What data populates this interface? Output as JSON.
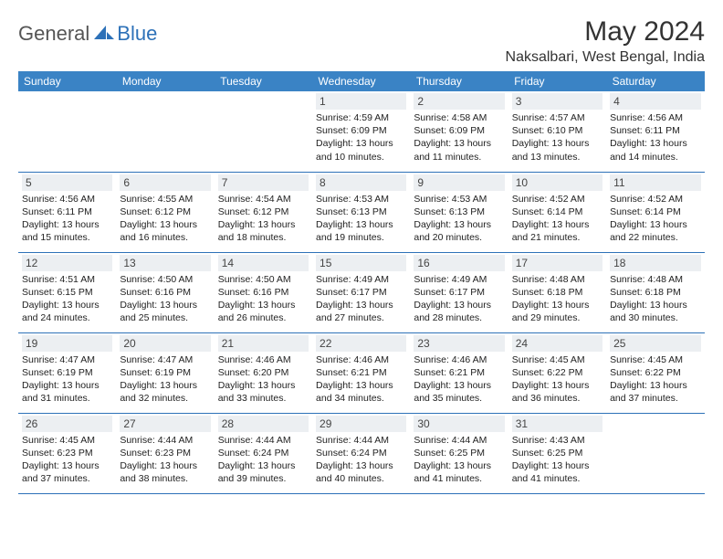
{
  "brand": {
    "part1": "General",
    "part2": "Blue"
  },
  "title": "May 2024",
  "location": "Naksalbari, West Bengal, India",
  "colors": {
    "header_bg": "#3a83c5",
    "header_text": "#ffffff",
    "daynum_bg": "#eceff2",
    "row_border": "#2d71b8",
    "brand_gray": "#555555",
    "brand_blue": "#2d71b8",
    "page_bg": "#ffffff"
  },
  "weekdays": [
    "Sunday",
    "Monday",
    "Tuesday",
    "Wednesday",
    "Thursday",
    "Friday",
    "Saturday"
  ],
  "weeks": [
    [
      null,
      null,
      null,
      {
        "d": "1",
        "sr": "4:59 AM",
        "ss": "6:09 PM",
        "dl": "13 hours and 10 minutes."
      },
      {
        "d": "2",
        "sr": "4:58 AM",
        "ss": "6:09 PM",
        "dl": "13 hours and 11 minutes."
      },
      {
        "d": "3",
        "sr": "4:57 AM",
        "ss": "6:10 PM",
        "dl": "13 hours and 13 minutes."
      },
      {
        "d": "4",
        "sr": "4:56 AM",
        "ss": "6:11 PM",
        "dl": "13 hours and 14 minutes."
      }
    ],
    [
      {
        "d": "5",
        "sr": "4:56 AM",
        "ss": "6:11 PM",
        "dl": "13 hours and 15 minutes."
      },
      {
        "d": "6",
        "sr": "4:55 AM",
        "ss": "6:12 PM",
        "dl": "13 hours and 16 minutes."
      },
      {
        "d": "7",
        "sr": "4:54 AM",
        "ss": "6:12 PM",
        "dl": "13 hours and 18 minutes."
      },
      {
        "d": "8",
        "sr": "4:53 AM",
        "ss": "6:13 PM",
        "dl": "13 hours and 19 minutes."
      },
      {
        "d": "9",
        "sr": "4:53 AM",
        "ss": "6:13 PM",
        "dl": "13 hours and 20 minutes."
      },
      {
        "d": "10",
        "sr": "4:52 AM",
        "ss": "6:14 PM",
        "dl": "13 hours and 21 minutes."
      },
      {
        "d": "11",
        "sr": "4:52 AM",
        "ss": "6:14 PM",
        "dl": "13 hours and 22 minutes."
      }
    ],
    [
      {
        "d": "12",
        "sr": "4:51 AM",
        "ss": "6:15 PM",
        "dl": "13 hours and 24 minutes."
      },
      {
        "d": "13",
        "sr": "4:50 AM",
        "ss": "6:16 PM",
        "dl": "13 hours and 25 minutes."
      },
      {
        "d": "14",
        "sr": "4:50 AM",
        "ss": "6:16 PM",
        "dl": "13 hours and 26 minutes."
      },
      {
        "d": "15",
        "sr": "4:49 AM",
        "ss": "6:17 PM",
        "dl": "13 hours and 27 minutes."
      },
      {
        "d": "16",
        "sr": "4:49 AM",
        "ss": "6:17 PM",
        "dl": "13 hours and 28 minutes."
      },
      {
        "d": "17",
        "sr": "4:48 AM",
        "ss": "6:18 PM",
        "dl": "13 hours and 29 minutes."
      },
      {
        "d": "18",
        "sr": "4:48 AM",
        "ss": "6:18 PM",
        "dl": "13 hours and 30 minutes."
      }
    ],
    [
      {
        "d": "19",
        "sr": "4:47 AM",
        "ss": "6:19 PM",
        "dl": "13 hours and 31 minutes."
      },
      {
        "d": "20",
        "sr": "4:47 AM",
        "ss": "6:19 PM",
        "dl": "13 hours and 32 minutes."
      },
      {
        "d": "21",
        "sr": "4:46 AM",
        "ss": "6:20 PM",
        "dl": "13 hours and 33 minutes."
      },
      {
        "d": "22",
        "sr": "4:46 AM",
        "ss": "6:21 PM",
        "dl": "13 hours and 34 minutes."
      },
      {
        "d": "23",
        "sr": "4:46 AM",
        "ss": "6:21 PM",
        "dl": "13 hours and 35 minutes."
      },
      {
        "d": "24",
        "sr": "4:45 AM",
        "ss": "6:22 PM",
        "dl": "13 hours and 36 minutes."
      },
      {
        "d": "25",
        "sr": "4:45 AM",
        "ss": "6:22 PM",
        "dl": "13 hours and 37 minutes."
      }
    ],
    [
      {
        "d": "26",
        "sr": "4:45 AM",
        "ss": "6:23 PM",
        "dl": "13 hours and 37 minutes."
      },
      {
        "d": "27",
        "sr": "4:44 AM",
        "ss": "6:23 PM",
        "dl": "13 hours and 38 minutes."
      },
      {
        "d": "28",
        "sr": "4:44 AM",
        "ss": "6:24 PM",
        "dl": "13 hours and 39 minutes."
      },
      {
        "d": "29",
        "sr": "4:44 AM",
        "ss": "6:24 PM",
        "dl": "13 hours and 40 minutes."
      },
      {
        "d": "30",
        "sr": "4:44 AM",
        "ss": "6:25 PM",
        "dl": "13 hours and 41 minutes."
      },
      {
        "d": "31",
        "sr": "4:43 AM",
        "ss": "6:25 PM",
        "dl": "13 hours and 41 minutes."
      },
      null
    ]
  ],
  "labels": {
    "sunrise": "Sunrise:",
    "sunset": "Sunset:",
    "daylight": "Daylight:"
  }
}
